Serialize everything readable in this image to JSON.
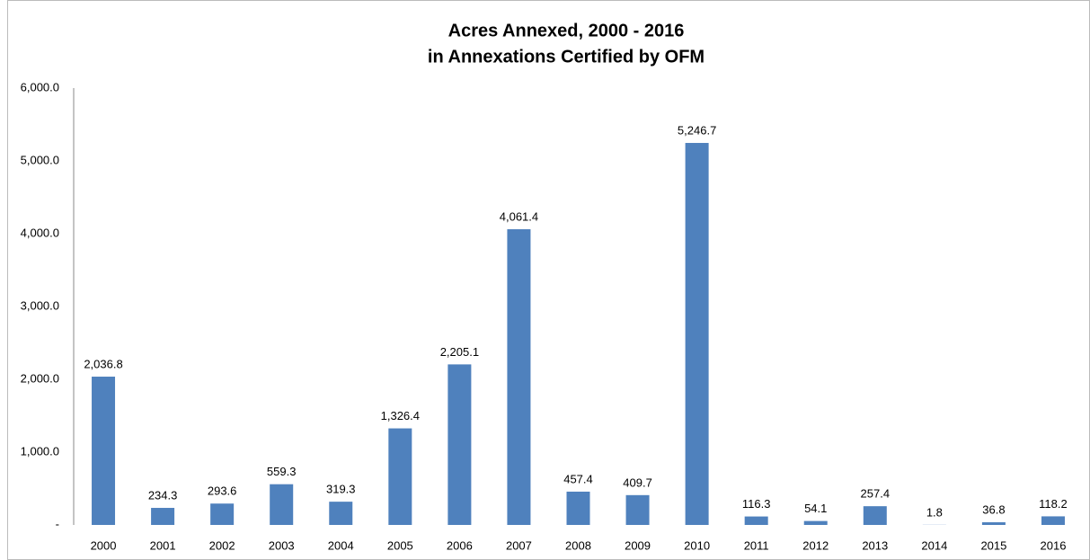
{
  "chart_data": {
    "type": "bar",
    "title": "Acres Annexed, 2000 - 2016",
    "subtitle": "in Annexations Certified by OFM",
    "categories": [
      "2000",
      "2001",
      "2002",
      "2003",
      "2004",
      "2005",
      "2006",
      "2007",
      "2008",
      "2009",
      "2010",
      "2011",
      "2012",
      "2013",
      "2014",
      "2015",
      "2016"
    ],
    "values": [
      2036.8,
      234.3,
      293.6,
      559.3,
      319.3,
      1326.4,
      2205.1,
      4061.4,
      457.4,
      409.7,
      5246.7,
      116.3,
      54.1,
      257.4,
      1.8,
      36.8,
      118.2
    ],
    "value_labels": [
      "2,036.8",
      "234.3",
      "293.6",
      "559.3",
      "319.3",
      "1,326.4",
      "2,205.1",
      "4,061.4",
      "457.4",
      "409.7",
      "5,246.7",
      "116.3",
      "54.1",
      "257.4",
      "1.8",
      "36.8",
      "118.2"
    ],
    "color": "#4f81bd",
    "ylim": [
      0,
      6000
    ],
    "yticks": [
      {
        "value": 0,
        "label": "-"
      },
      {
        "value": 1000,
        "label": "1,000.0"
      },
      {
        "value": 2000,
        "label": "2,000.0"
      },
      {
        "value": 3000,
        "label": "3,000.0"
      },
      {
        "value": 4000,
        "label": "4,000.0"
      },
      {
        "value": 5000,
        "label": "5,000.0"
      },
      {
        "value": 6000,
        "label": "6,000.0"
      }
    ],
    "grid": true
  }
}
